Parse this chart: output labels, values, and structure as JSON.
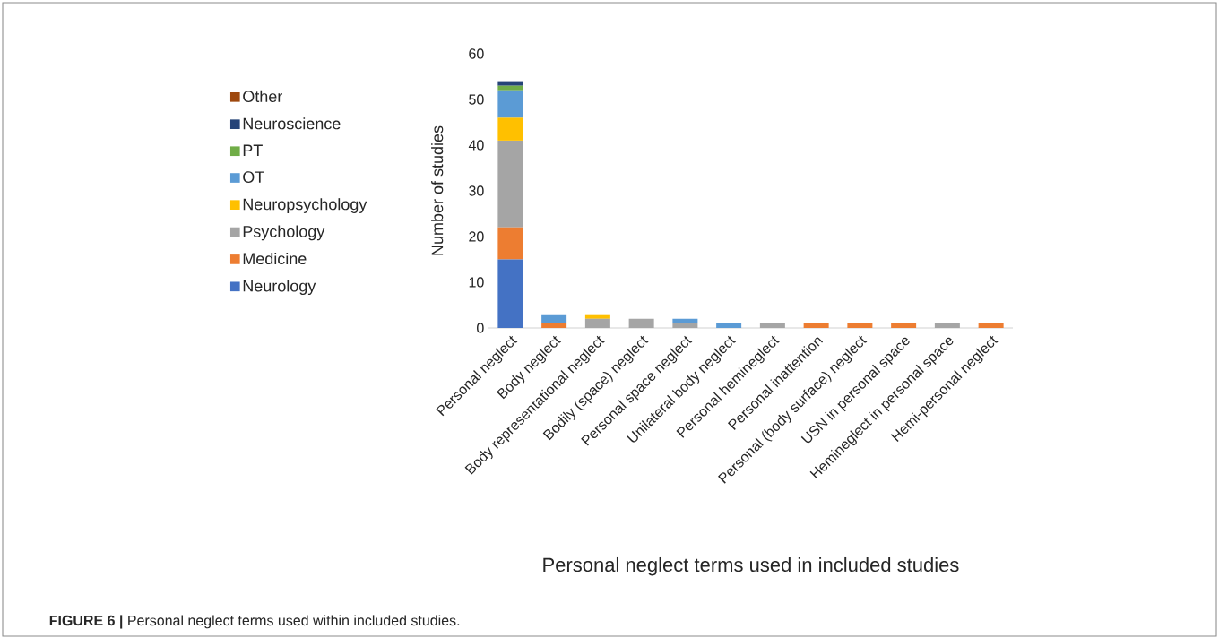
{
  "chart_data": {
    "type": "bar",
    "stacked": true,
    "xlabel": "Personal neglect terms used in included studies",
    "ylabel": "Number of studies",
    "categories": [
      "Personal neglect",
      "Body neglect",
      "Body representational neglect",
      "Bodily (space) neglect",
      "Personal space neglect",
      "Unilateral body neglect",
      "Personal hemineglect",
      "Personal inattention",
      "Personal (body surface) neglect",
      "USN in personal space",
      "Hemineglect in personal space",
      "Hemi-personal neglect"
    ],
    "series": [
      {
        "name": "Neurology",
        "color": "#4472c4",
        "values": [
          15,
          0,
          0,
          0,
          0,
          0,
          0,
          0,
          0,
          0,
          0,
          0
        ]
      },
      {
        "name": "Medicine",
        "color": "#ed7d31",
        "values": [
          7,
          1,
          0,
          0,
          0,
          0,
          0,
          1,
          1,
          1,
          0,
          1
        ]
      },
      {
        "name": "Psychology",
        "color": "#a5a5a5",
        "values": [
          19,
          0,
          2,
          2,
          1,
          0,
          1,
          0,
          0,
          0,
          1,
          0
        ]
      },
      {
        "name": "Neuropsychology",
        "color": "#ffc000",
        "values": [
          5,
          0,
          1,
          0,
          0,
          0,
          0,
          0,
          0,
          0,
          0,
          0
        ]
      },
      {
        "name": "OT",
        "color": "#5b9bd5",
        "values": [
          6,
          2,
          0,
          0,
          1,
          1,
          0,
          0,
          0,
          0,
          0,
          0
        ]
      },
      {
        "name": "PT",
        "color": "#70ad47",
        "values": [
          1,
          0,
          0,
          0,
          0,
          0,
          0,
          0,
          0,
          0,
          0,
          0
        ]
      },
      {
        "name": "Neuroscience",
        "color": "#264478",
        "values": [
          1,
          0,
          0,
          0,
          0,
          0,
          0,
          0,
          0,
          0,
          0,
          0
        ]
      },
      {
        "name": "Other",
        "color": "#9e480e",
        "values": [
          0,
          0,
          0,
          0,
          0,
          0,
          0,
          0,
          0,
          0,
          0,
          0
        ]
      }
    ],
    "ylim": [
      0,
      60
    ],
    "yticks": [
      0,
      10,
      20,
      30,
      40,
      50,
      60
    ],
    "grid": false,
    "legend": "left",
    "annotations": [
      "**FIGURE 6 |** Personal neglect terms used within included studies."
    ]
  }
}
